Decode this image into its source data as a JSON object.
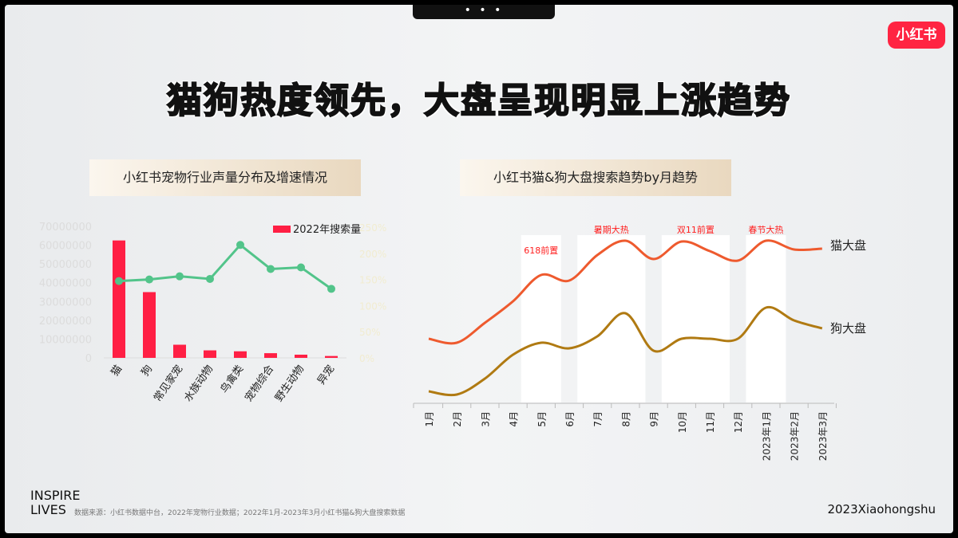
{
  "topbar": {
    "dots": "• • •"
  },
  "logo": {
    "text": "小红书"
  },
  "title": "猫狗热度领先，大盘呈现明显上涨趋势",
  "left_header": "小红书宠物行业声量分布及增速情况",
  "right_header": "小红书猫&狗大盘搜索趋势by月趋势",
  "footer": {
    "brand_line1": "INSPIRE",
    "brand_line2": "LIVES",
    "source": "数据来源：小红书数据中台，2022年宠物行业数据；2022年1月-2023年3月小红书猫&狗大盘搜索数据",
    "right": "2023Xiaohongshu"
  },
  "chart_data": [
    {
      "type": "bar+line",
      "categories": [
        "猫",
        "狗",
        "常见家宠",
        "水族动物",
        "鸟禽类",
        "宠物综合",
        "野生动物",
        "异宠"
      ],
      "series": [
        {
          "name": "2022年搜索量",
          "type": "bar",
          "color": "#ff1f44",
          "values": [
            62500000,
            35000000,
            7000000,
            4000000,
            3500000,
            2500000,
            1700000,
            1000000
          ]
        },
        {
          "type": "line",
          "axis": "right",
          "color": "#52c48a",
          "values": [
            147,
            150,
            156,
            151,
            216,
            170,
            173,
            132
          ]
        }
      ],
      "y_left": {
        "ticks": [
          "0",
          "10000000",
          "20000000",
          "30000000",
          "40000000",
          "50000000",
          "60000000",
          "70000000"
        ],
        "range": [
          0,
          70000000
        ]
      },
      "y_right": {
        "ticks": [
          "0%",
          "50%",
          "100%",
          "150%",
          "200%",
          "250%"
        ],
        "range": [
          0,
          250
        ]
      },
      "legend": "top-right"
    },
    {
      "type": "line",
      "categories": [
        "1月",
        "2月",
        "3月",
        "4月",
        "5月",
        "6月",
        "7月",
        "8月",
        "9月",
        "10月",
        "11月",
        "12月",
        "2023年1月",
        "2023年2月",
        "2023年3月"
      ],
      "series": [
        {
          "name": "猫大盘",
          "color": "#ee5a2e",
          "values": [
            75,
            70,
            95,
            122,
            155,
            148,
            180,
            198,
            175,
            197,
            185,
            173,
            198,
            187,
            188
          ]
        },
        {
          "name": "狗大盘",
          "color": "#b07a12",
          "values": [
            9,
            5,
            25,
            55,
            70,
            63,
            78,
            107,
            60,
            75,
            75,
            75,
            114,
            98,
            88
          ]
        }
      ],
      "highlights": [
        {
          "month": "5月",
          "label": "618前置"
        },
        {
          "months": [
            "7月",
            "8月"
          ],
          "label": "暑期大热"
        },
        {
          "months": [
            "10月",
            "11月"
          ],
          "label": "双11前置"
        },
        {
          "month": "2023年1月",
          "label": "春节大热"
        }
      ],
      "y_axis": "hidden"
    }
  ]
}
